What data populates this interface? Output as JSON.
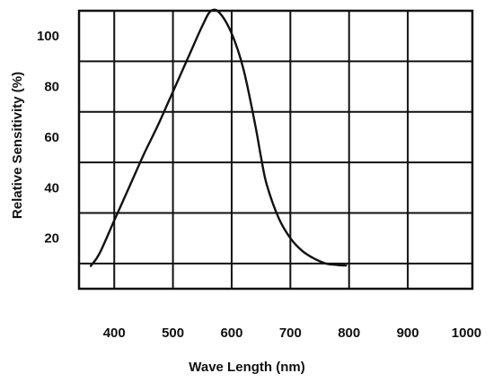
{
  "chart_data": {
    "type": "line",
    "title": "",
    "xlabel": "Wave Length (nm)",
    "ylabel": "Relative Sensitivity (%)",
    "xlim": [
      340,
      1010
    ],
    "ylim": [
      0,
      110
    ],
    "x_ticks": [
      400,
      500,
      600,
      700,
      800,
      900,
      1000
    ],
    "x_tick_labels": [
      "400",
      "500",
      "600",
      "700",
      "800",
      "900",
      "1000"
    ],
    "y_ticks": [
      20,
      40,
      60,
      80,
      100
    ],
    "y_tick_labels": [
      "20",
      "40",
      "60",
      "80",
      "100"
    ],
    "x_grid": [
      400,
      500,
      600,
      700,
      800,
      900
    ],
    "y_grid": [
      10,
      30,
      50,
      70,
      90
    ],
    "grid": true,
    "legend": "none",
    "colors": {
      "line": "#111111",
      "grid": "#111111",
      "axes": "#111111",
      "background": "#ffffff"
    },
    "series": [
      {
        "x": [
          360,
          375,
          400,
          425,
          450,
          475,
          500,
          525,
          550,
          565,
          580,
          600,
          620,
          640,
          650,
          660,
          680,
          700,
          720,
          740,
          760,
          780,
          795
        ],
        "y": [
          9,
          14,
          27,
          40,
          53,
          65,
          78,
          91,
          104,
          110,
          109,
          101,
          87,
          65,
          52,
          41,
          28,
          20,
          15,
          12,
          10,
          9.4,
          9.2
        ]
      }
    ]
  }
}
